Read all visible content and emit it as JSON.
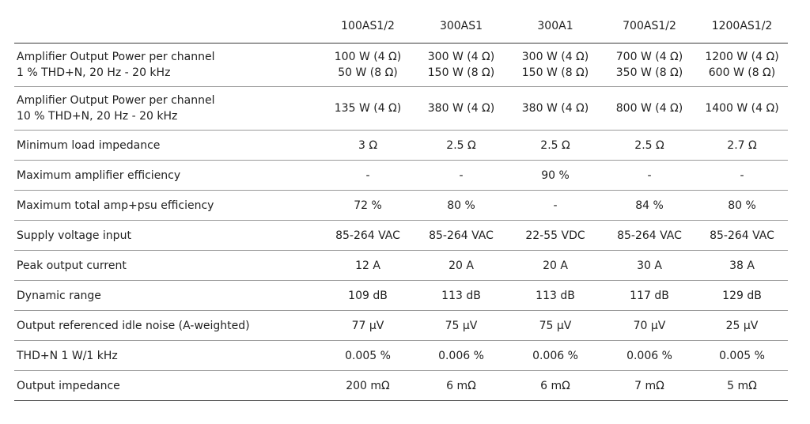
{
  "models": [
    "100AS1/2",
    "300AS1",
    "300A1",
    "700AS1/2",
    "1200AS1/2"
  ],
  "rows": [
    {
      "label": [
        "Amplifier Output Power per channel",
        "1 % THD+N, 20 Hz - 20 kHz"
      ],
      "values": [
        [
          "100 W (4 Ω)",
          "50 W (8 Ω)"
        ],
        [
          "300 W (4 Ω)",
          "150 W (8 Ω)"
        ],
        [
          "300 W (4 Ω)",
          "150 W (8 Ω)"
        ],
        [
          "700 W (4 Ω)",
          "350 W (8 Ω)"
        ],
        [
          "1200 W (4 Ω)",
          "600 W (8 Ω)"
        ]
      ]
    },
    {
      "label": [
        "Amplifier Output Power per channel",
        "10 % THD+N, 20 Hz - 20 kHz"
      ],
      "values": [
        "135 W (4 Ω)",
        "380 W (4 Ω)",
        "380 W (4 Ω)",
        "800 W (4 Ω)",
        "1400 W (4 Ω)"
      ]
    },
    {
      "label": "Minimum load impedance",
      "values": [
        "3 Ω",
        "2.5 Ω",
        "2.5 Ω",
        "2.5 Ω",
        "2.7 Ω"
      ]
    },
    {
      "label": "Maximum amplifier efficiency",
      "values": [
        "-",
        "-",
        "90 %",
        "-",
        "-"
      ]
    },
    {
      "label": "Maximum total amp+psu efficiency",
      "values": [
        "72 %",
        "80 %",
        "-",
        "84 %",
        "80 %"
      ]
    },
    {
      "label": "Supply voltage input",
      "values": [
        "85-264 VAC",
        "85-264 VAC",
        "22-55 VDC",
        "85-264 VAC",
        "85-264 VAC"
      ]
    },
    {
      "label": "Peak output current",
      "values": [
        "12 A",
        "20 A",
        "20 A",
        "30 A",
        "38 A"
      ]
    },
    {
      "label": "Dynamic range",
      "values": [
        "109 dB",
        "113 dB",
        "113 dB",
        "117 dB",
        "129 dB"
      ]
    },
    {
      "label": "Output referenced idle noise (A-weighted)",
      "values": [
        "77 µV",
        "75 µV",
        "75 µV",
        "70 µV",
        "25 µV"
      ]
    },
    {
      "label": "THD+N 1 W/1 kHz",
      "values": [
        "0.005 %",
        "0.006 %",
        "0.006 %",
        "0.006 %",
        "0.005 %"
      ]
    },
    {
      "label": "Output impedance",
      "values": [
        "200 mΩ",
        "6 mΩ",
        "6 mΩ",
        "7 mΩ",
        "5 mΩ"
      ]
    }
  ]
}
